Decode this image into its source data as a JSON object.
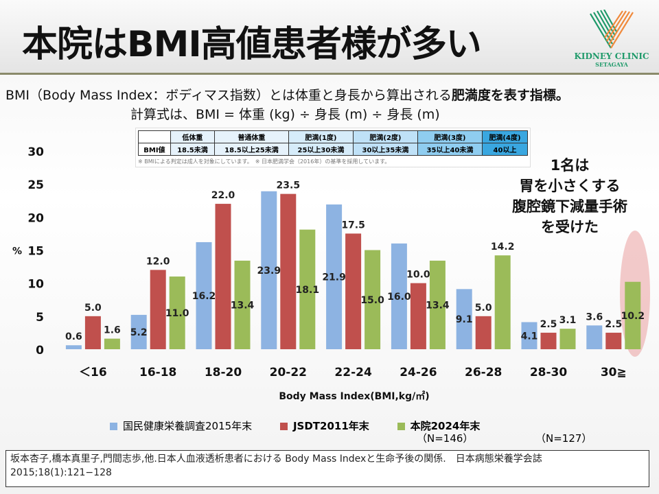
{
  "title": "本院はBMI高値患者様が多い",
  "logo": {
    "name": "KIDNEY CLINIC",
    "sub": "SETAGAYA",
    "colors": [
      "#1f9a6a",
      "#f08a3c"
    ]
  },
  "description": {
    "line1_a": "BMI（Body Mass Index：ボディマス指数）とは体重と身長から算出される",
    "line1_b": "肥満度を表す指標。",
    "line2": "計算式は、BMI = 体重 (kg) ÷ 身長 (m) ÷ 身長 (m)"
  },
  "bmi_table": {
    "header": [
      "",
      "低体重",
      "普通体重",
      "肥満(1度)",
      "肥満(2度)",
      "肥満(3度)",
      "肥満(4度)"
    ],
    "row": [
      "BMI値",
      "18.5未満",
      "18.5以上25未満",
      "25以上30未満",
      "30以上35未満",
      "35以上40未満",
      "40以上"
    ],
    "colors": [
      "#ffffff",
      "#e6f2fb",
      "#e6f2fb",
      "#d6ecfa",
      "#bfe1f7",
      "#8fcdf0",
      "#3aa7e0"
    ],
    "note": "※ BMIによる判定は成人を対象にしています。　※ 日本肥満学会（2016年）の基準を採用しています。"
  },
  "annotation": [
    "1名は",
    "胃を小さくする",
    "腹腔鏡下減量手術",
    "を受けた"
  ],
  "chart_data": {
    "type": "bar",
    "title": "",
    "xlabel": "Body Mass Index(BMI,kg/㎡)",
    "ylabel": "%",
    "ylim": [
      0,
      30
    ],
    "yticks": [
      "0",
      "5",
      "10",
      "15",
      "20",
      "25",
      "30"
    ],
    "categories": [
      "＜16",
      "16-18",
      "18-20",
      "20-22",
      "22-24",
      "24-26",
      "26-28",
      "28-30",
      "30≧"
    ],
    "series": [
      {
        "name": "国民健康栄養調査2015年末",
        "color": "#8db3e2",
        "values": [
          0.6,
          5.2,
          16.2,
          23.9,
          21.9,
          16.0,
          9.1,
          4.1,
          3.6
        ],
        "labels": [
          "0.6",
          "5.2",
          "16.2",
          "23.9",
          "21.9",
          "16.0",
          "9.1",
          "4.1",
          "3.6"
        ]
      },
      {
        "name": "JSDT2011年末",
        "color": "#c0504d",
        "values": [
          5.0,
          12.0,
          22.0,
          23.5,
          17.5,
          10.0,
          5.0,
          2.5,
          2.5
        ],
        "labels": [
          "5.0",
          "12.0",
          "22.0",
          "23.5",
          "17.5",
          "10.0",
          "5.0",
          "2.5",
          "2.5"
        ]
      },
      {
        "name": "本院2024年末",
        "color": "#9bbb59",
        "values": [
          1.6,
          11.0,
          13.4,
          18.1,
          15.0,
          13.4,
          14.2,
          3.1,
          10.2
        ],
        "labels": [
          "1.6",
          "11.0",
          "13.4",
          "18.1",
          "15.0",
          "13.4",
          "14.2",
          "3.1",
          "10.2"
        ]
      }
    ],
    "legend_position": "bottom",
    "grid": false
  },
  "legend_notes": {
    "jsdt_n": "（N=146）",
    "clinic_n": "（N=127）"
  },
  "footer": "坂本杏子,橋本真里子,門間志歩,他.日本人血液透析患者における Body Mass Indexと生命予後の関係.　日本病態栄養学会誌　2015;18(1):121−128"
}
